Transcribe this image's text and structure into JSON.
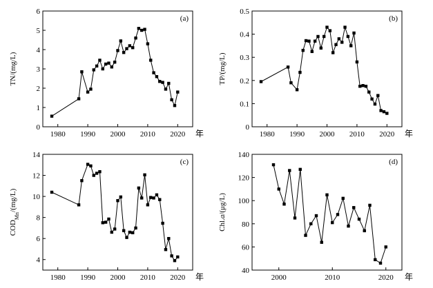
{
  "chart_data": [
    {
      "panel_label": "(a)",
      "type": "line",
      "ylabel": "TN/(mg/L)",
      "x_unit": "年",
      "xlim": [
        1975,
        2025
      ],
      "ylim": [
        0,
        6
      ],
      "xticks": [
        1980,
        1990,
        2000,
        2010,
        2020
      ],
      "yticks": [
        0,
        1,
        2,
        3,
        4,
        5,
        6
      ],
      "marker": "square",
      "points": [
        [
          1978,
          0.55
        ],
        [
          1987,
          1.45
        ],
        [
          1988,
          2.85
        ],
        [
          1990,
          1.8
        ],
        [
          1991,
          1.95
        ],
        [
          1992,
          2.95
        ],
        [
          1993,
          3.15
        ],
        [
          1994,
          3.45
        ],
        [
          1995,
          3.0
        ],
        [
          1996,
          3.25
        ],
        [
          1997,
          3.3
        ],
        [
          1998,
          3.1
        ],
        [
          1999,
          3.35
        ],
        [
          2000,
          3.95
        ],
        [
          2001,
          4.45
        ],
        [
          2002,
          3.85
        ],
        [
          2003,
          4.05
        ],
        [
          2004,
          4.2
        ],
        [
          2005,
          4.1
        ],
        [
          2006,
          4.6
        ],
        [
          2007,
          5.1
        ],
        [
          2008,
          5.0
        ],
        [
          2009,
          5.05
        ],
        [
          2010,
          4.3
        ],
        [
          2011,
          3.45
        ],
        [
          2012,
          2.8
        ],
        [
          2013,
          2.6
        ],
        [
          2014,
          2.35
        ],
        [
          2015,
          2.3
        ],
        [
          2016,
          1.95
        ],
        [
          2017,
          2.25
        ],
        [
          2018,
          1.4
        ],
        [
          2019,
          1.1
        ],
        [
          2020,
          1.8
        ]
      ]
    },
    {
      "panel_label": "(b)",
      "type": "line",
      "ylabel": "TP/(mg/L)",
      "x_unit": "年",
      "xlim": [
        1975,
        2025
      ],
      "ylim": [
        0,
        0.5
      ],
      "xticks": [
        1980,
        1990,
        2000,
        2010,
        2020
      ],
      "yticks": [
        0,
        0.1,
        0.2,
        0.3,
        0.4,
        0.5
      ],
      "marker": "square",
      "points": [
        [
          1978,
          0.195
        ],
        [
          1987,
          0.258
        ],
        [
          1988,
          0.19
        ],
        [
          1990,
          0.16
        ],
        [
          1991,
          0.235
        ],
        [
          1992,
          0.33
        ],
        [
          1993,
          0.372
        ],
        [
          1994,
          0.37
        ],
        [
          1995,
          0.325
        ],
        [
          1996,
          0.37
        ],
        [
          1997,
          0.39
        ],
        [
          1998,
          0.34
        ],
        [
          1999,
          0.39
        ],
        [
          2000,
          0.43
        ],
        [
          2001,
          0.415
        ],
        [
          2002,
          0.32
        ],
        [
          2003,
          0.355
        ],
        [
          2004,
          0.38
        ],
        [
          2005,
          0.365
        ],
        [
          2006,
          0.43
        ],
        [
          2007,
          0.39
        ],
        [
          2008,
          0.35
        ],
        [
          2009,
          0.405
        ],
        [
          2010,
          0.28
        ],
        [
          2011,
          0.175
        ],
        [
          2012,
          0.178
        ],
        [
          2013,
          0.175
        ],
        [
          2014,
          0.15
        ],
        [
          2015,
          0.12
        ],
        [
          2016,
          0.098
        ],
        [
          2017,
          0.135
        ],
        [
          2018,
          0.07
        ],
        [
          2019,
          0.065
        ],
        [
          2020,
          0.058
        ]
      ]
    },
    {
      "panel_label": "(c)",
      "type": "line",
      "ylabel": "COD",
      "ylabel_sub": "Mn",
      "ylabel_rest": "/(mg/L)",
      "x_unit": "年",
      "xlim": [
        1975,
        2025
      ],
      "ylim": [
        3,
        14
      ],
      "xticks": [
        1980,
        1990,
        2000,
        2010,
        2020
      ],
      "yticks": [
        4,
        6,
        8,
        10,
        12,
        14
      ],
      "marker": "square",
      "points": [
        [
          1978,
          10.4
        ],
        [
          1987,
          9.2
        ],
        [
          1988,
          11.5
        ],
        [
          1990,
          13.05
        ],
        [
          1991,
          12.9
        ],
        [
          1992,
          12.0
        ],
        [
          1993,
          12.2
        ],
        [
          1994,
          12.35
        ],
        [
          1995,
          7.5
        ],
        [
          1996,
          7.55
        ],
        [
          1997,
          7.85
        ],
        [
          1998,
          6.6
        ],
        [
          1999,
          6.9
        ],
        [
          2000,
          9.6
        ],
        [
          2001,
          9.95
        ],
        [
          2002,
          6.75
        ],
        [
          2003,
          6.1
        ],
        [
          2004,
          6.6
        ],
        [
          2005,
          6.55
        ],
        [
          2006,
          7.0
        ],
        [
          2007,
          10.8
        ],
        [
          2008,
          9.85
        ],
        [
          2009,
          12.05
        ],
        [
          2010,
          9.2
        ],
        [
          2011,
          9.9
        ],
        [
          2012,
          9.85
        ],
        [
          2013,
          10.15
        ],
        [
          2014,
          9.7
        ],
        [
          2015,
          7.45
        ],
        [
          2016,
          4.95
        ],
        [
          2017,
          6.0
        ],
        [
          2018,
          4.35
        ],
        [
          2019,
          3.9
        ],
        [
          2020,
          4.25
        ]
      ]
    },
    {
      "panel_label": "(d)",
      "type": "line",
      "ylabel": "Chl.",
      "ylabel_ital": "a",
      "ylabel_rest": "/(μg/L)",
      "x_unit": "年",
      "xlim": [
        1995,
        2023
      ],
      "ylim": [
        40,
        140
      ],
      "xticks": [
        2000,
        2010,
        2020
      ],
      "yticks": [
        40,
        60,
        80,
        100,
        120,
        140
      ],
      "marker": "square",
      "points": [
        [
          1999,
          131
        ],
        [
          2000,
          110
        ],
        [
          2001,
          97
        ],
        [
          2002,
          126
        ],
        [
          2003,
          85
        ],
        [
          2004,
          127
        ],
        [
          2005,
          70
        ],
        [
          2006,
          80
        ],
        [
          2007,
          87
        ],
        [
          2008,
          64
        ],
        [
          2009,
          105
        ],
        [
          2010,
          81
        ],
        [
          2011,
          88
        ],
        [
          2012,
          102
        ],
        [
          2013,
          78
        ],
        [
          2014,
          94
        ],
        [
          2015,
          84
        ],
        [
          2016,
          74
        ],
        [
          2017,
          96
        ],
        [
          2018,
          49
        ],
        [
          2019,
          46
        ],
        [
          2020,
          60
        ]
      ]
    }
  ]
}
